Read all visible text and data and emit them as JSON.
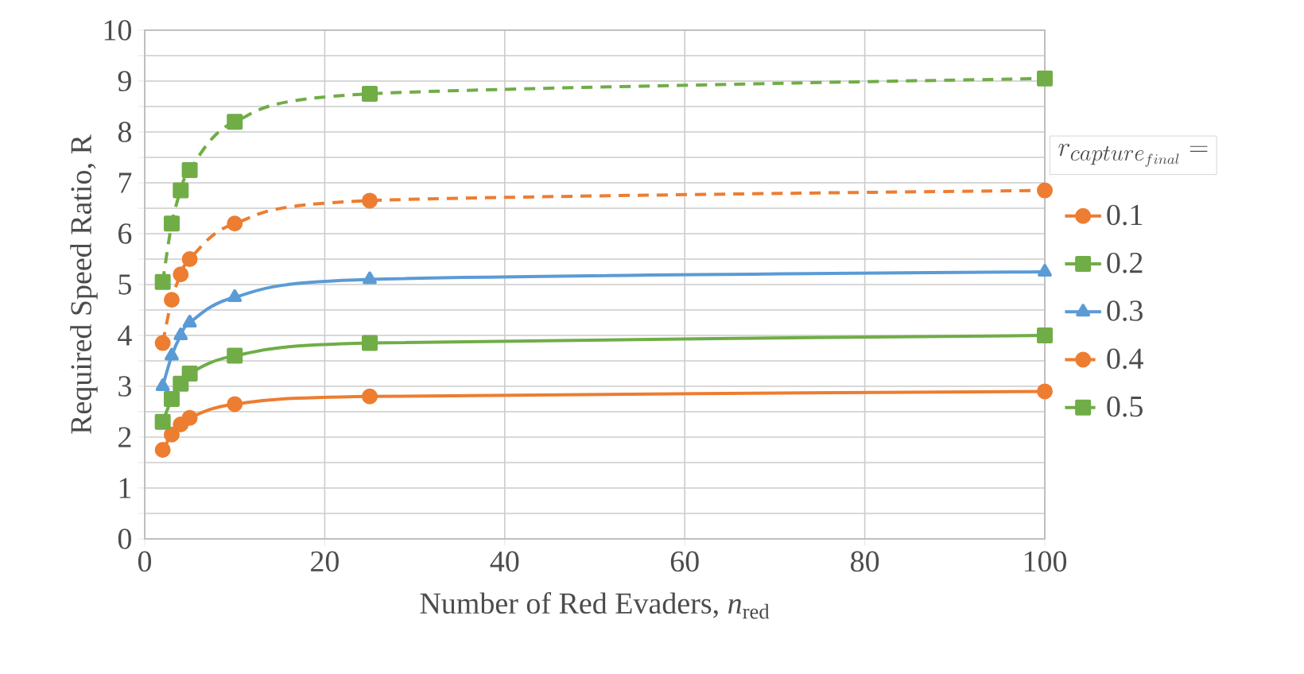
{
  "chart_data": {
    "type": "line",
    "xlabel": "Number of Red Evaders, *n*$_{red}$",
    "ylabel": "Required Speed Ratio, R",
    "legend_title": "r_{capture_{final}} =",
    "x": [
      2,
      3,
      4,
      5,
      10,
      25,
      100
    ],
    "series": [
      {
        "name": "0.1",
        "color": "#ed7d31",
        "marker": "circle",
        "line_style": "solid",
        "values": [
          1.75,
          2.05,
          2.25,
          2.38,
          2.65,
          2.8,
          2.9
        ]
      },
      {
        "name": "0.2",
        "color": "#70ad47",
        "marker": "square",
        "line_style": "solid",
        "values": [
          2.3,
          2.75,
          3.05,
          3.25,
          3.6,
          3.85,
          4.0
        ]
      },
      {
        "name": "0.3",
        "color": "#5b9bd5",
        "marker": "triangle",
        "line_style": "solid",
        "values": [
          3.0,
          3.6,
          4.0,
          4.25,
          4.75,
          5.1,
          5.25
        ]
      },
      {
        "name": "0.4",
        "color": "#ed7d31",
        "marker": "circle",
        "line_style": "dashed",
        "values": [
          3.85,
          4.7,
          5.2,
          5.5,
          6.2,
          6.65,
          6.85
        ]
      },
      {
        "name": "0.5",
        "color": "#70ad47",
        "marker": "square",
        "line_style": "dashed",
        "values": [
          5.05,
          6.2,
          6.85,
          7.25,
          8.2,
          8.75,
          9.05
        ]
      }
    ],
    "xlim": [
      0,
      100
    ],
    "xticks": [
      0,
      20,
      40,
      60,
      80,
      100
    ],
    "ylim": [
      0,
      10
    ],
    "yticks": [
      0,
      {
        "value": 0.5,
        "label": null
      },
      1,
      {
        "value": 1.5,
        "label": null
      },
      2,
      {
        "value": 2.5,
        "label": null
      },
      3,
      {
        "value": 3.5,
        "label": null
      },
      4,
      {
        "value": 4.5,
        "label": null
      },
      5,
      {
        "value": 5.5,
        "label": null
      },
      6,
      {
        "value": 6.5,
        "label": null
      },
      7,
      {
        "value": 7.5,
        "label": null
      },
      8,
      {
        "value": 8.5,
        "label": null
      },
      9,
      {
        "value": 9.5,
        "label": null
      },
      10
    ],
    "grid": true,
    "legend": "right"
  }
}
